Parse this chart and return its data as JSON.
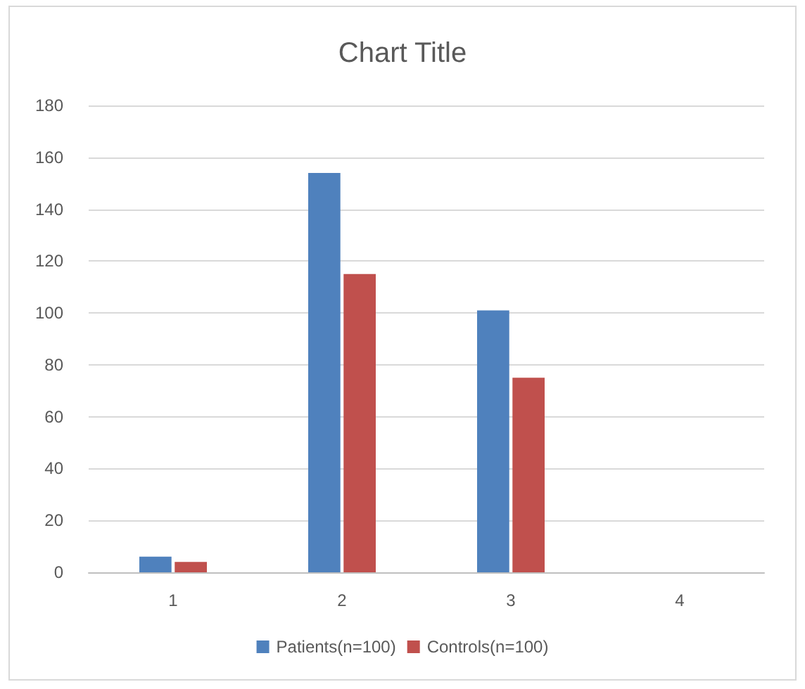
{
  "chart_data": {
    "type": "bar",
    "title": "Chart Title",
    "categories": [
      "1",
      "2",
      "3",
      "4"
    ],
    "series": [
      {
        "name": "Patients(n=100)",
        "color": "#4f81bd",
        "values": [
          6,
          154,
          101,
          0
        ]
      },
      {
        "name": "Controls(n=100)",
        "color": "#c0504d",
        "values": [
          4,
          115,
          75,
          0
        ]
      }
    ],
    "ylim": [
      0,
      180
    ],
    "yticks": [
      0,
      20,
      40,
      60,
      80,
      100,
      120,
      140,
      160,
      180
    ],
    "grid": "y",
    "legend": "bottom"
  }
}
